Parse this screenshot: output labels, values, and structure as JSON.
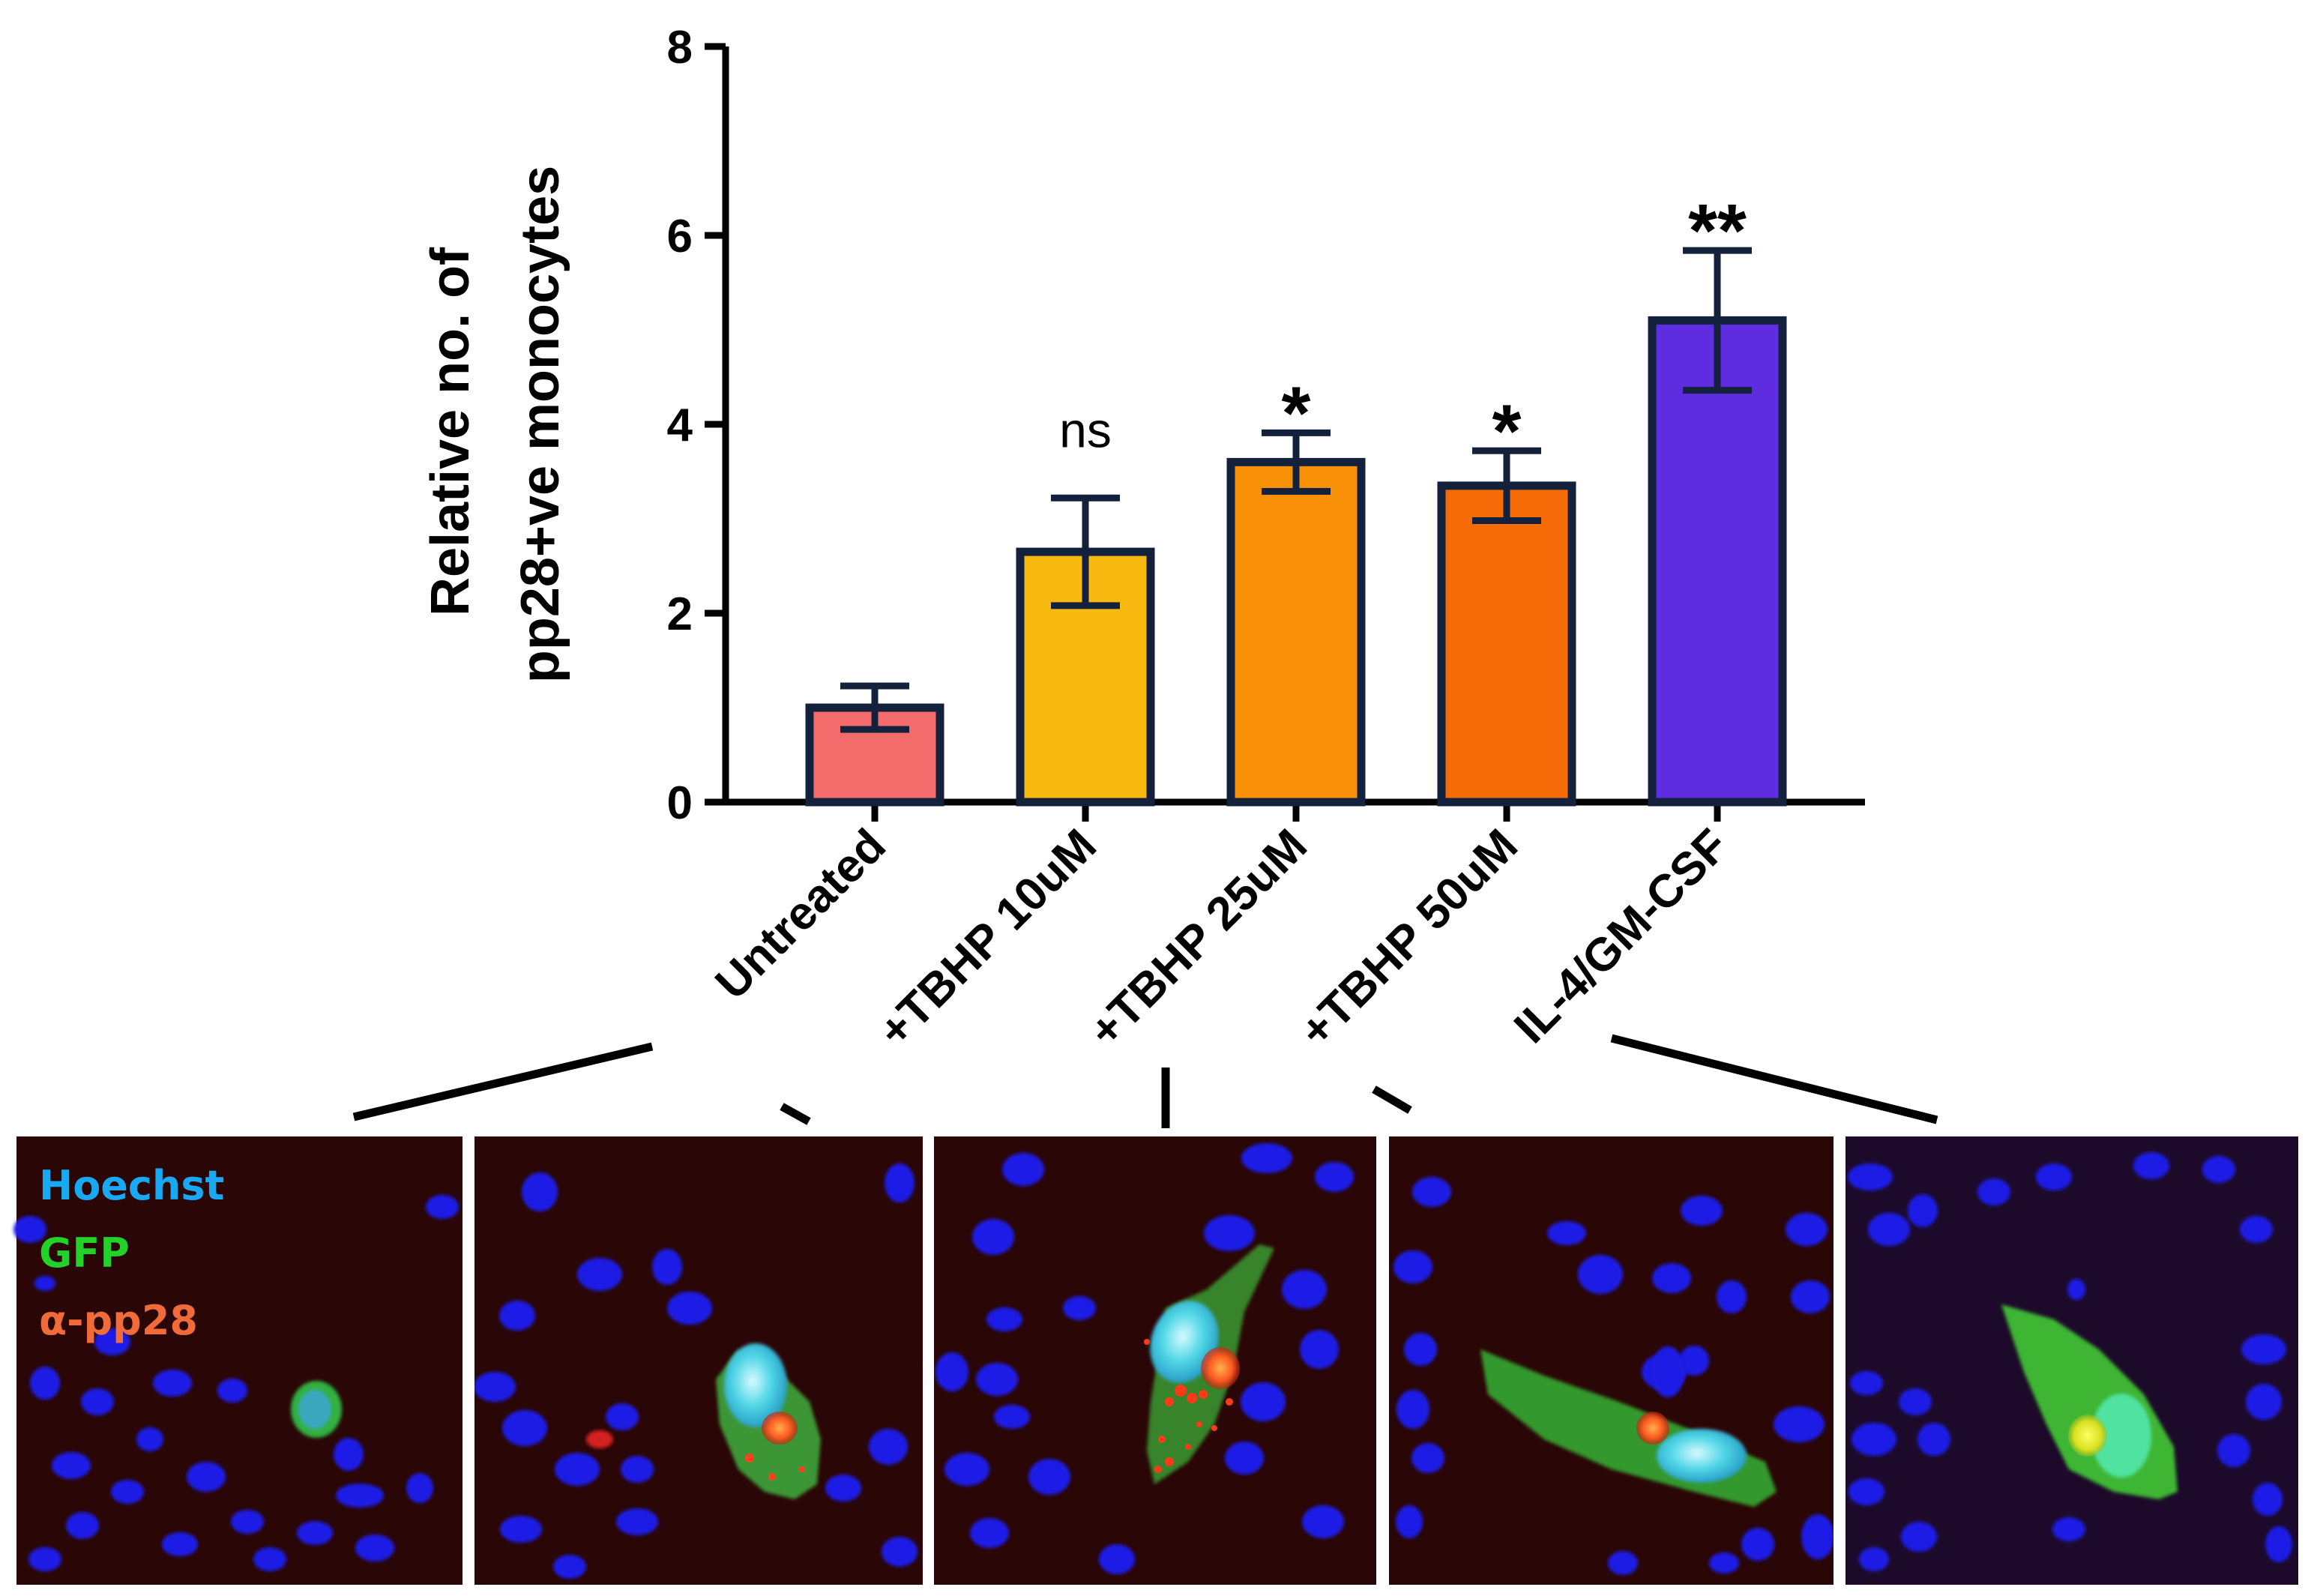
{
  "chart_data": {
    "type": "bar",
    "ylabel_line1": "Relative no. of",
    "ylabel_line2": "pp28+ve monocytes",
    "ylim": [
      0,
      8
    ],
    "yticks": [
      "0",
      "2",
      "4",
      "6",
      "8"
    ],
    "categories": [
      "Untreated",
      "+TBHP 10uM",
      "+TBHP 25uM",
      "+TBHP 50uM",
      "IL-4/GM-CSF"
    ],
    "values": [
      1.0,
      2.65,
      3.6,
      3.35,
      5.1
    ],
    "errors": [
      0.23,
      0.57,
      0.31,
      0.37,
      0.74
    ],
    "significance": [
      "",
      "ns",
      "*",
      "*",
      "**"
    ],
    "bar_colors": [
      "#f46b6b",
      "#f7b90f",
      "#f79006",
      "#f46b07",
      "#5e2de0"
    ],
    "edge_color": "#14213d",
    "grid": false
  },
  "micrographs": {
    "count": 5,
    "background": "#2a0606",
    "nucleus_color": "#1f1fe6",
    "legend": [
      {
        "label": "Hoechst",
        "color": "#19a9f2"
      },
      {
        "label": "GFP",
        "color": "#22d22b"
      },
      {
        "label": "α-pp28",
        "color": "#f06a3a"
      }
    ]
  }
}
